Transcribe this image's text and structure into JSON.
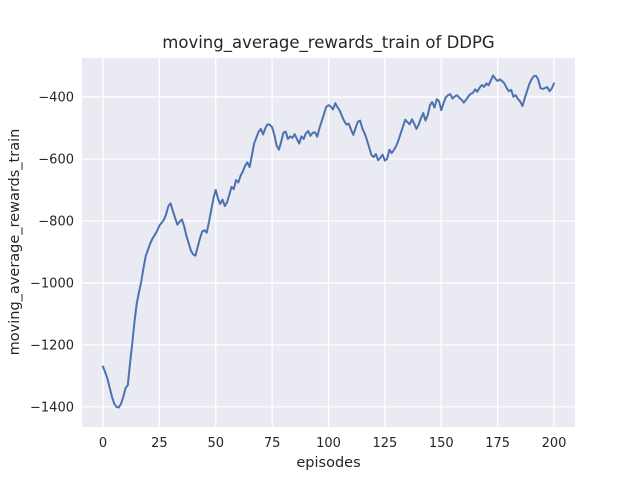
{
  "chart_data": {
    "type": "line",
    "title": "moving_average_rewards_train of DDPG",
    "xlabel": "episodes",
    "ylabel": "moving_average_rewards_train",
    "x_ticks": [
      0,
      25,
      50,
      75,
      100,
      125,
      150,
      175,
      200
    ],
    "y_ticks": [
      -400,
      -600,
      -800,
      -1000,
      -1200,
      -1400
    ],
    "xlim": [
      -9.3,
      209.3
    ],
    "ylim": [
      -1465,
      -274
    ],
    "grid": true,
    "legend": false,
    "colors": {
      "plot_background": "#EAEAF2",
      "grid": "#FFFFFF",
      "line": "#4C72B0",
      "text": "#262626",
      "figure_background": "#FFFFFF"
    },
    "series": [
      {
        "name": "moving_average_rewards_train",
        "color": "#4C72B0",
        "x": {
          "start": 0,
          "end": 200,
          "step": 1
        },
        "y": [
          -1270,
          -1288,
          -1310,
          -1338,
          -1368,
          -1390,
          -1400,
          -1402,
          -1390,
          -1368,
          -1340,
          -1330,
          -1260,
          -1195,
          -1125,
          -1065,
          -1028,
          -995,
          -950,
          -912,
          -892,
          -872,
          -856,
          -845,
          -832,
          -815,
          -806,
          -796,
          -778,
          -752,
          -743,
          -768,
          -790,
          -812,
          -802,
          -795,
          -818,
          -848,
          -872,
          -896,
          -908,
          -912,
          -884,
          -856,
          -834,
          -830,
          -838,
          -803,
          -765,
          -726,
          -700,
          -728,
          -745,
          -731,
          -752,
          -740,
          -716,
          -690,
          -697,
          -668,
          -676,
          -655,
          -640,
          -622,
          -611,
          -626,
          -590,
          -550,
          -532,
          -512,
          -503,
          -521,
          -500,
          -488,
          -490,
          -497,
          -523,
          -556,
          -570,
          -545,
          -515,
          -512,
          -535,
          -527,
          -532,
          -520,
          -535,
          -550,
          -527,
          -535,
          -517,
          -510,
          -525,
          -515,
          -514,
          -528,
          -500,
          -478,
          -455,
          -432,
          -426,
          -431,
          -440,
          -420,
          -433,
          -444,
          -462,
          -478,
          -489,
          -486,
          -506,
          -522,
          -500,
          -480,
          -476,
          -501,
          -517,
          -537,
          -562,
          -586,
          -594,
          -584,
          -604,
          -596,
          -586,
          -605,
          -600,
          -570,
          -581,
          -571,
          -558,
          -540,
          -517,
          -496,
          -473,
          -481,
          -488,
          -472,
          -486,
          -503,
          -489,
          -468,
          -452,
          -476,
          -459,
          -426,
          -416,
          -434,
          -407,
          -413,
          -442,
          -420,
          -401,
          -394,
          -391,
          -405,
          -398,
          -394,
          -402,
          -409,
          -418,
          -409,
          -398,
          -390,
          -387,
          -375,
          -383,
          -370,
          -361,
          -367,
          -356,
          -362,
          -346,
          -330,
          -341,
          -348,
          -343,
          -349,
          -356,
          -371,
          -381,
          -377,
          -399,
          -394,
          -406,
          -414,
          -429,
          -404,
          -381,
          -359,
          -343,
          -333,
          -331,
          -343,
          -371,
          -374,
          -371,
          -368,
          -381,
          -372,
          -356
        ]
      }
    ]
  }
}
